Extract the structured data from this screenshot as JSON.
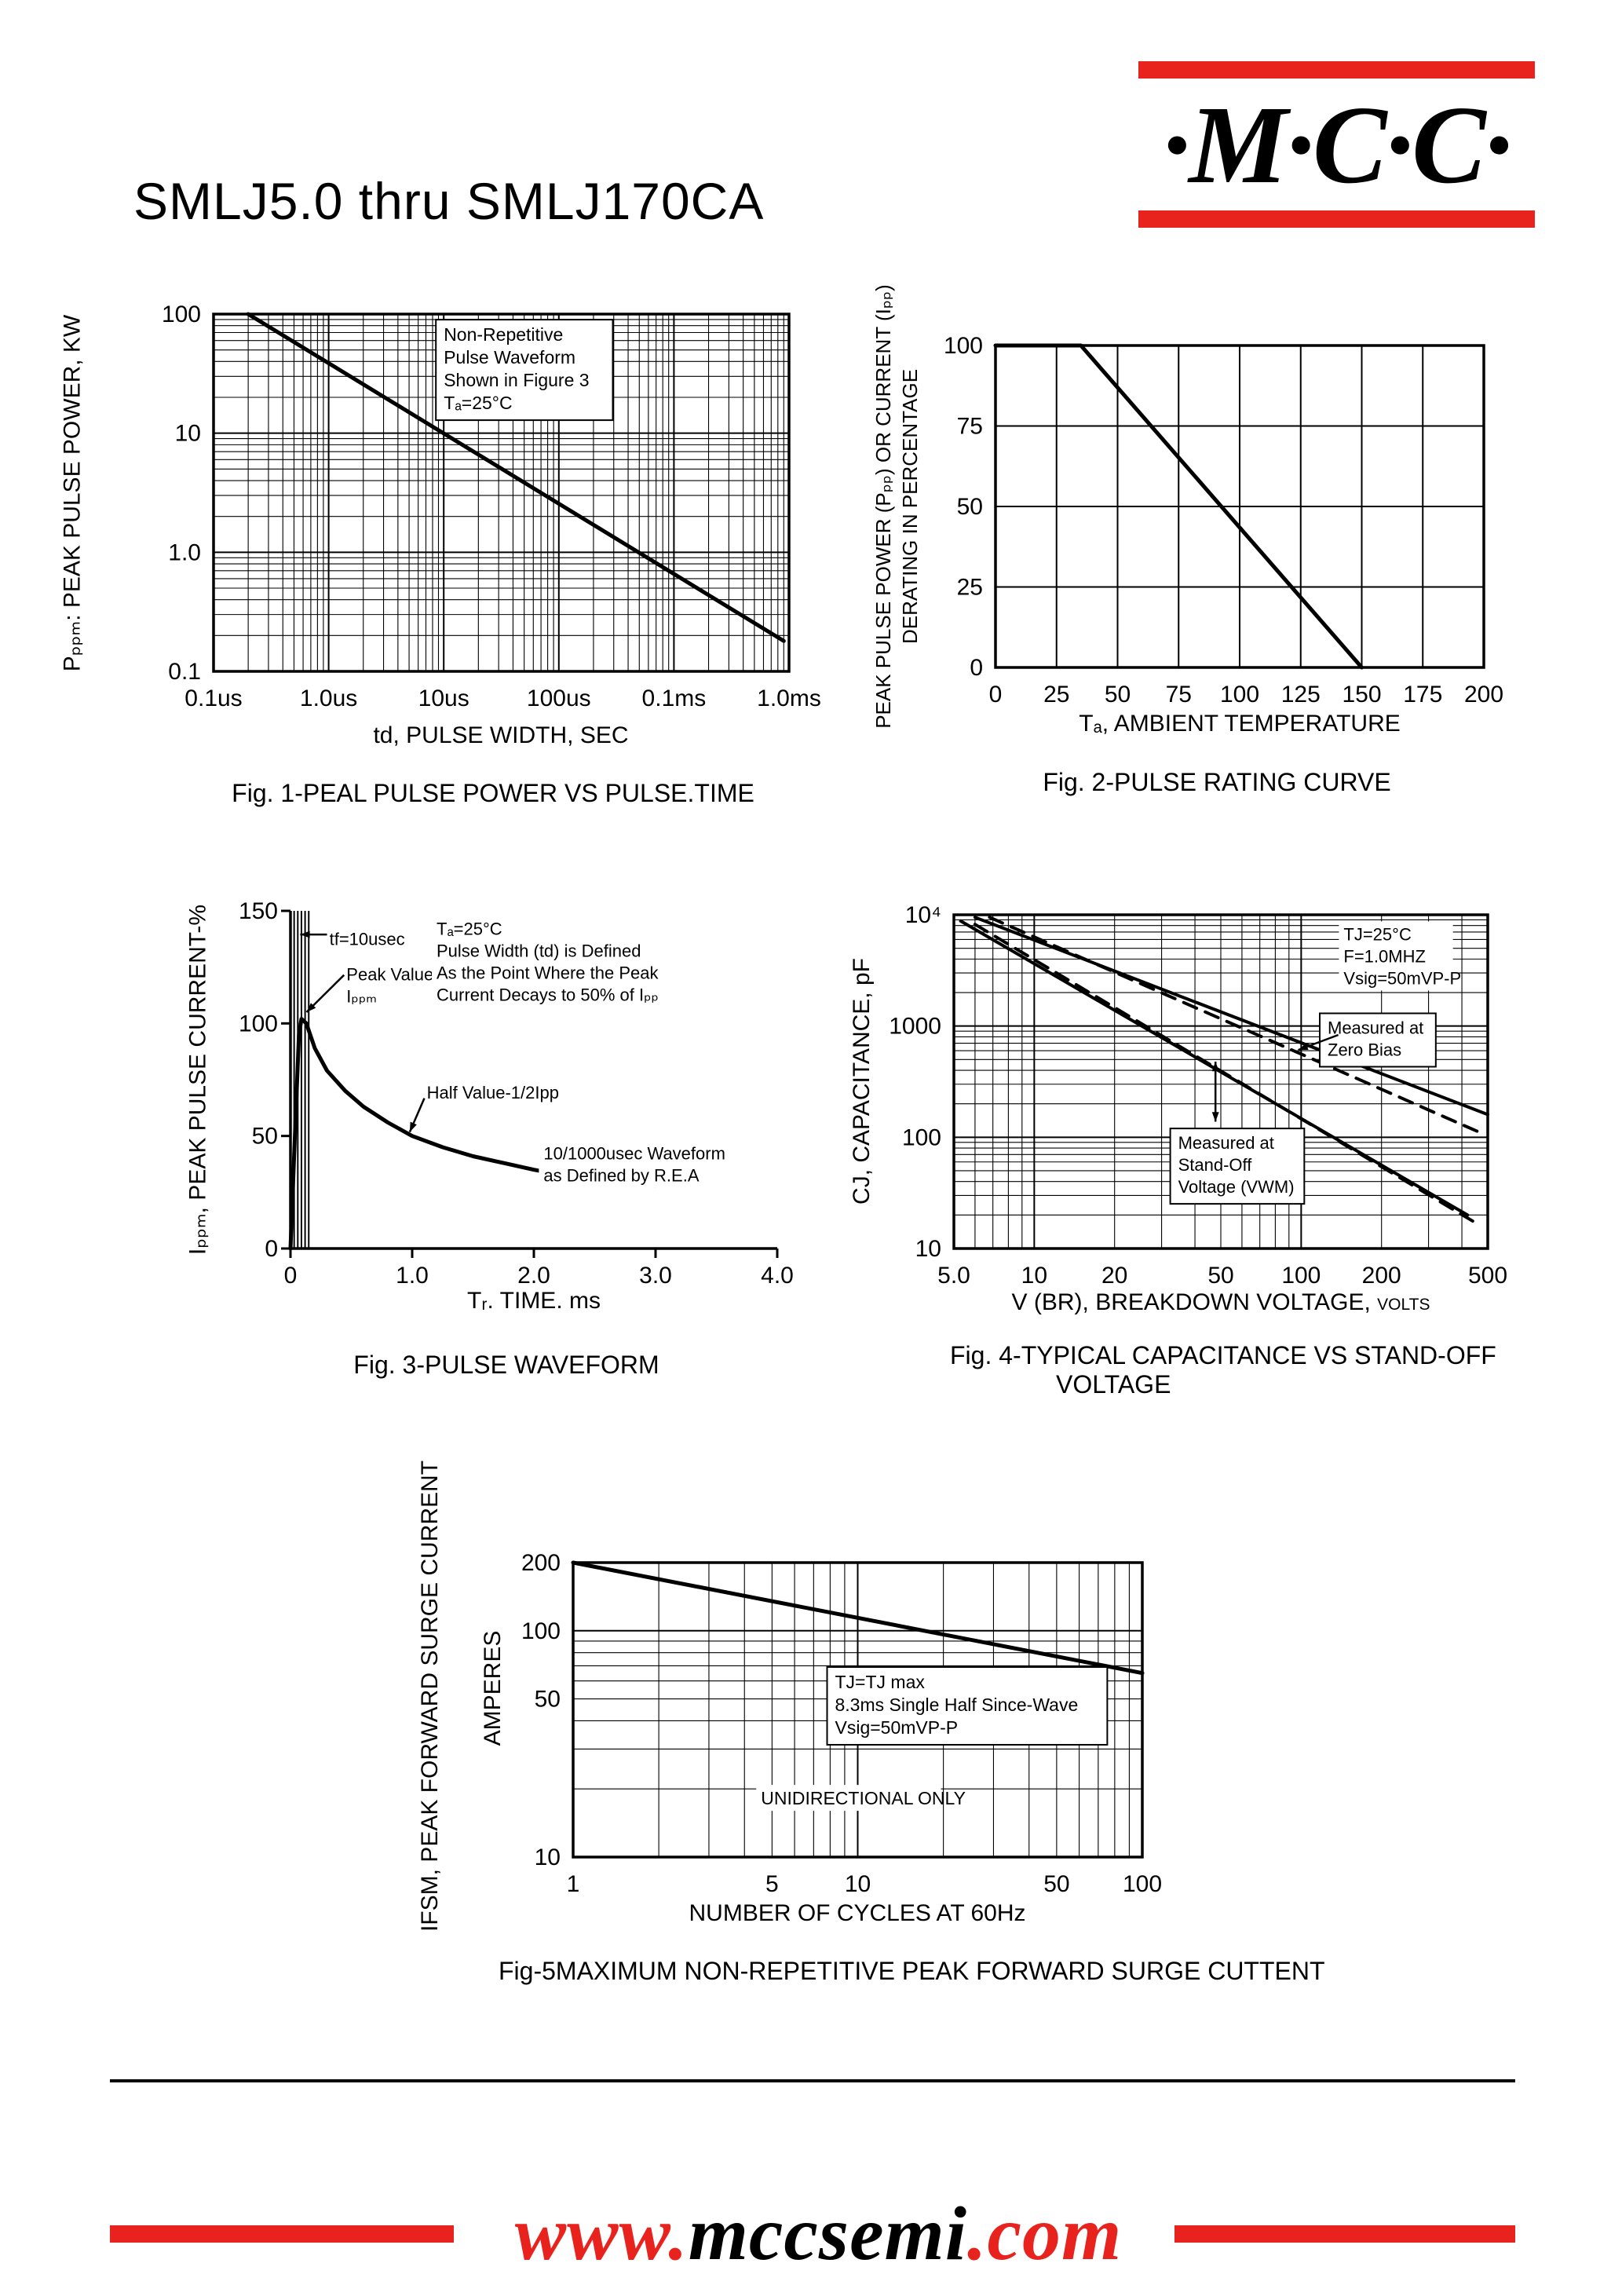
{
  "page": {
    "title": "SMLJ5.0 thru SMLJ170CA",
    "logo": {
      "text": "·M·C·C·",
      "bar_color": "#e8231e"
    },
    "footer": {
      "url_www": "www.",
      "url_mid": "mccsemi",
      "url_end": ".com",
      "accent": "#e8231e"
    }
  },
  "chart_data": [
    {
      "id": "fig1",
      "type": "line",
      "caption": "Fig. 1-PEAL PULSE POWER VS PULSE.TIME",
      "x": {
        "scale": "log",
        "min": 1e-07,
        "max": 0.01,
        "title": "td, PULSE WIDTH, SEC",
        "minor_grid": true,
        "ticks": [
          {
            "v": 1e-07,
            "label": "0.1us"
          },
          {
            "v": 1e-06,
            "label": "1.0us"
          },
          {
            "v": 1e-05,
            "label": "10us"
          },
          {
            "v": 0.0001,
            "label": "100us"
          },
          {
            "v": 0.001,
            "label": "0.1ms"
          },
          {
            "v": 0.01,
            "label": "1.0ms"
          }
        ]
      },
      "y": {
        "scale": "log",
        "min": 0.1,
        "max": 100,
        "title": "Pₚₚₘ: PEAK PULSE POWER, KW",
        "minor_grid": true,
        "ticks": [
          {
            "v": 100,
            "label": "100"
          },
          {
            "v": 10,
            "label": "10"
          },
          {
            "v": 1,
            "label": "1.0"
          },
          {
            "v": 0.1,
            "label": "0.1"
          }
        ]
      },
      "frame": "box",
      "series": [
        {
          "name": "peak-pulse-power",
          "dash": false,
          "width": 5,
          "points": [
            [
              2e-07,
              100
            ],
            [
              0.009,
              0.18
            ]
          ]
        }
      ],
      "annotations": [
        {
          "lines": [
            "Non-Repetitive",
            "Pulse Waveform",
            "Shown in Figure 3",
            "Tₐ=25°C"
          ],
          "fx": 0.4,
          "fy": 0.02,
          "box": true
        }
      ]
    },
    {
      "id": "fig2",
      "type": "line",
      "caption": "Fig. 2-PULSE RATING CURVE",
      "x": {
        "scale": "linear",
        "min": 0,
        "max": 200,
        "step": 25,
        "title": "Tₐ, AMBIENT TEMPERATURE",
        "ticks": [
          {
            "v": 0,
            "label": "0"
          },
          {
            "v": 25,
            "label": "25"
          },
          {
            "v": 50,
            "label": "50"
          },
          {
            "v": 75,
            "label": "75"
          },
          {
            "v": 100,
            "label": "100"
          },
          {
            "v": 125,
            "label": "125"
          },
          {
            "v": 150,
            "label": "150"
          },
          {
            "v": 175,
            "label": "175"
          },
          {
            "v": 200,
            "label": "200"
          }
        ]
      },
      "y": {
        "scale": "linear",
        "min": 0,
        "max": 100,
        "step": 25,
        "title_lines": [
          "PEAK PULSE POWER (Pₚₚ) OR CURRENT (Iₚₚ)",
          "DERATING IN PERCENTAGE"
        ],
        "ticks": [
          {
            "v": 100,
            "label": "100"
          },
          {
            "v": 75,
            "label": "75"
          },
          {
            "v": 50,
            "label": "50"
          },
          {
            "v": 25,
            "label": "25"
          },
          {
            "v": 0,
            "label": "0"
          }
        ]
      },
      "frame": "box",
      "series": [
        {
          "name": "derating-curve",
          "dash": false,
          "width": 5,
          "points": [
            [
              0,
              100
            ],
            [
              35,
              100
            ],
            [
              150,
              0
            ]
          ]
        }
      ]
    },
    {
      "id": "fig3",
      "type": "line",
      "caption": "Fig. 3-PULSE WAVEFORM",
      "x": {
        "scale": "linear",
        "min": 0,
        "max": 4,
        "title": "Tᵣ. TIME. ms",
        "ticks": [
          {
            "v": 0,
            "label": "0"
          },
          {
            "v": 1,
            "label": "1.0"
          },
          {
            "v": 2,
            "label": "2.0"
          },
          {
            "v": 3,
            "label": "3.0"
          },
          {
            "v": 4,
            "label": "4.0"
          }
        ]
      },
      "y": {
        "scale": "linear",
        "min": 0,
        "max": 150,
        "title": "Iₚₚₘ, PEAK PULSE CURRENT-%",
        "ticks": [
          {
            "v": 150,
            "label": "150"
          },
          {
            "v": 100,
            "label": "100"
          },
          {
            "v": 50,
            "label": "50"
          },
          {
            "v": 0,
            "label": "0"
          }
        ]
      },
      "frame": "axes",
      "vlines": [
        0.03,
        0.06,
        0.09,
        0.12,
        0.15
      ],
      "series": [
        {
          "name": "pulse-waveform",
          "dash": false,
          "width": 5,
          "points": [
            [
              0,
              0
            ],
            [
              0.04,
              55
            ],
            [
              0.07,
              95
            ],
            [
              0.09,
              102
            ],
            [
              0.13,
              100
            ],
            [
              0.2,
              89
            ],
            [
              0.3,
              79
            ],
            [
              0.45,
              70
            ],
            [
              0.6,
              63
            ],
            [
              0.8,
              56
            ],
            [
              1.0,
              50
            ],
            [
              1.25,
              45
            ],
            [
              1.5,
              41
            ],
            [
              1.75,
              38
            ],
            [
              2.0,
              35
            ],
            [
              2.3,
              32
            ],
            [
              2.6,
              30
            ],
            [
              3.0,
              28
            ]
          ]
        }
      ],
      "annotations": [
        {
          "lines": [
            "tf=10usec"
          ],
          "fx": 0.08,
          "fy": 0.045,
          "fs": 22
        },
        {
          "lines": [
            "Peak Value",
            "Iₚₚₘ"
          ],
          "fx": 0.115,
          "fy": 0.15,
          "fs": 22
        },
        {
          "lines": [
            "Half Value-1/2Ipp"
          ],
          "fx": 0.28,
          "fy": 0.5,
          "fs": 22
        },
        {
          "lines": [
            "Tₐ=25°C",
            "Pulse Width (td) is Defined",
            "As the Point Where the Peak",
            "Current Decays to 50% of Iₚₚ"
          ],
          "fx": 0.3,
          "fy": 0.015,
          "fs": 22
        },
        {
          "lines": [
            "10/1000usec Waveform",
            "as Defined by R.E.A"
          ],
          "fx": 0.52,
          "fy": 0.68,
          "fs": 22
        }
      ],
      "arrows": [
        {
          "f": [
            0.075,
            0.07,
            0.02,
            0.07
          ],
          "heads": "end"
        },
        {
          "f": [
            0.11,
            0.19,
            0.033,
            0.3
          ],
          "heads": "end"
        },
        {
          "f": [
            0.275,
            0.555,
            0.245,
            0.655
          ],
          "heads": "end"
        }
      ]
    },
    {
      "id": "fig4",
      "type": "line",
      "caption_lines": [
        "Fig. 4-TYPICAL CAPACITANCE VS STAND-OFF",
        "VOLTAGE"
      ],
      "x": {
        "scale": "log",
        "min": 5,
        "max": 500,
        "title": "V (BR), BREAKDOWN VOLTAGE,",
        "title_small": "VOLTS",
        "minor_grid": true,
        "ticks": [
          {
            "v": 5,
            "label": "5.0"
          },
          {
            "v": 10,
            "label": "10"
          },
          {
            "v": 20,
            "label": "20"
          },
          {
            "v": 50,
            "label": "50"
          },
          {
            "v": 100,
            "label": "100"
          },
          {
            "v": 200,
            "label": "200"
          },
          {
            "v": 500,
            "label": "500"
          }
        ]
      },
      "y": {
        "scale": "log",
        "min": 10,
        "max": 10000,
        "title": "CJ, CAPACITANCE, pF",
        "minor_grid": true,
        "ticks": [
          {
            "v": 10000,
            "label": "10⁴"
          },
          {
            "v": 1000,
            "label": "1000"
          },
          {
            "v": 100,
            "label": "100"
          },
          {
            "v": 10,
            "label": "10"
          }
        ]
      },
      "frame": "box",
      "series": [
        {
          "name": "zero-bias-solid",
          "dash": false,
          "width": 4,
          "points": [
            [
              6,
              9500
            ],
            [
              500,
              160
            ]
          ]
        },
        {
          "name": "zero-bias-dashed",
          "dash": true,
          "width": 4,
          "points": [
            [
              6.8,
              9500
            ],
            [
              490,
              105
            ]
          ]
        },
        {
          "name": "standoff-solid",
          "dash": false,
          "width": 4,
          "points": [
            [
              5.3,
              8800
            ],
            [
              420,
              20
            ]
          ]
        },
        {
          "name": "standoff-dashed",
          "dash": true,
          "width": 4,
          "points": [
            [
              6.0,
              8200
            ],
            [
              470,
              16
            ]
          ]
        }
      ],
      "annotations": [
        {
          "lines": [
            "TJ=25°C",
            "F=1.0MHZ",
            "Vsig=50mVP-P"
          ],
          "fx": 0.73,
          "fy": 0.02,
          "fs": 22
        },
        {
          "lines": [
            "Measured at",
            "Zero Bias"
          ],
          "fx": 0.7,
          "fy": 0.3,
          "fs": 22,
          "box": true
        },
        {
          "lines": [
            "Measured at",
            "Stand-Off",
            "Voltage (VWM)"
          ],
          "fx": 0.42,
          "fy": 0.645,
          "fs": 22,
          "box": true
        }
      ],
      "arrows": [
        {
          "f": [
            0.72,
            0.36,
            0.645,
            0.405
          ],
          "heads": "end"
        },
        {
          "f": [
            0.49,
            0.62,
            0.49,
            0.44
          ],
          "heads": "both"
        }
      ]
    },
    {
      "id": "fig5",
      "type": "line",
      "caption": "Fig-5MAXIMUM NON-REPETITIVE PEAK FORWARD SURGE CUTTENT",
      "x": {
        "scale": "log",
        "min": 1,
        "max": 100,
        "title": "NUMBER OF CYCLES AT 60Hz",
        "minor_grid": true,
        "ticks": [
          {
            "v": 1,
            "label": "1"
          },
          {
            "v": 5,
            "label": "5"
          },
          {
            "v": 10,
            "label": "10"
          },
          {
            "v": 50,
            "label": "50"
          },
          {
            "v": 100,
            "label": "100"
          }
        ]
      },
      "y": {
        "scale": "log",
        "min": 10,
        "max": 200,
        "title": "IFSM, PEAK FORWARD SURGE CURRENT",
        "title2": "AMPERES",
        "minor_grid": true,
        "ticks": [
          {
            "v": 200,
            "label": "200"
          },
          {
            "v": 100,
            "label": "100"
          },
          {
            "v": 50,
            "label": "50"
          },
          {
            "v": 10,
            "label": "10"
          }
        ]
      },
      "frame": "box",
      "series": [
        {
          "name": "surge-current",
          "dash": false,
          "width": 5,
          "points": [
            [
              1,
              200
            ],
            [
              100,
              65
            ]
          ]
        }
      ],
      "annotations": [
        {
          "lines": [
            "TJ=TJ max",
            "8.3ms Single Half Since-Wave",
            "Vsig=50mVP-P"
          ],
          "fx": 0.46,
          "fy": 0.36,
          "fs": 23,
          "box": true
        },
        {
          "lines": [
            "UNIDIRECTIONAL ONLY"
          ],
          "fx": 0.33,
          "fy": 0.755,
          "fs": 23
        }
      ]
    }
  ]
}
